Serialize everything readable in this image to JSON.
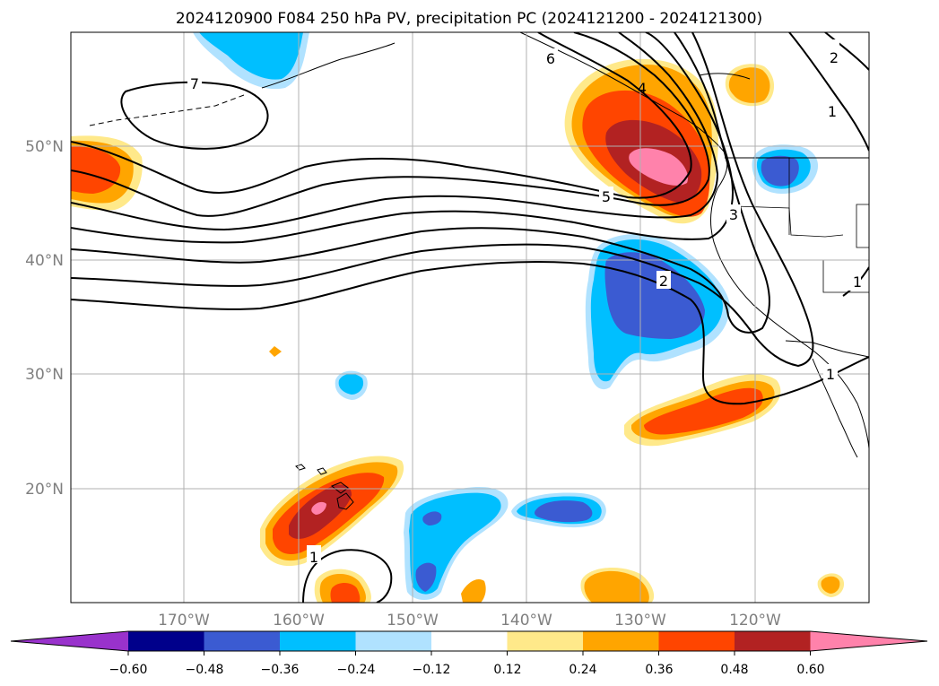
{
  "title": "2024120900 F084 250 hPa PV, precipitation PC (2024121200 - 2024121300)",
  "map": {
    "lat_labels": [
      "50°N",
      "40°N",
      "30°N",
      "20°N"
    ],
    "lon_labels": [
      "170°W",
      "160°W",
      "150°W",
      "140°W",
      "130°W",
      "120°W"
    ],
    "pv_contour_labels": [
      "7",
      "6",
      "5",
      "4",
      "3",
      "2",
      "2",
      "1",
      "1",
      "1",
      "1",
      "2"
    ],
    "gridlines": true
  },
  "colorbar": {
    "tick_labels": [
      "−0.60",
      "−0.48",
      "−0.36",
      "−0.24",
      "−0.12",
      "0.12",
      "0.24",
      "0.36",
      "0.48",
      "0.60"
    ],
    "colors": [
      "#9932cc",
      "#00008b",
      "#3b5bd2",
      "#00bfff",
      "#b0e2ff",
      "#ffffff",
      "#ffe98a",
      "#ffa500",
      "#ff4500",
      "#b22222",
      "#ff82ab"
    ],
    "extend": "both"
  }
}
